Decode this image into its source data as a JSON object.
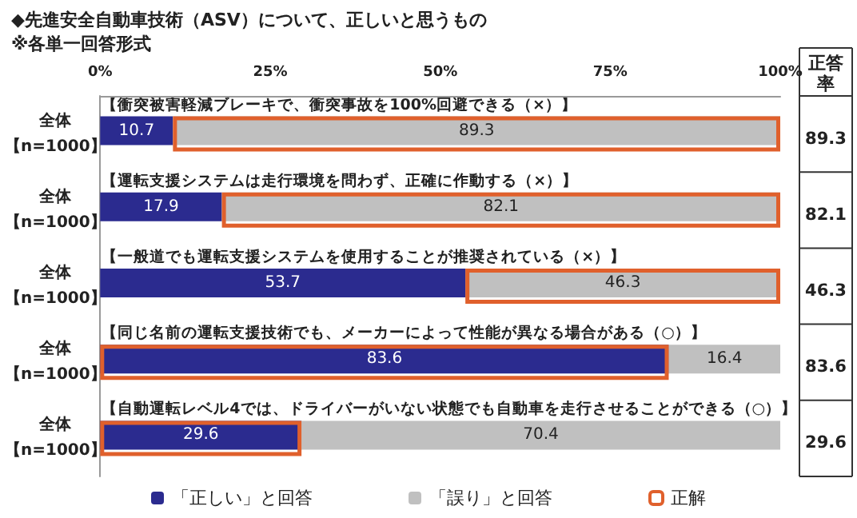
{
  "chart_data": {
    "type": "bar",
    "orientation": "horizontal",
    "title": "◆先進安全自動車技術（ASV）について、正しいと思うもの",
    "subtitle": "※各単一回答形式",
    "categories": [
      "全体【n=1000】",
      "全体【n=1000】",
      "全体【n=1000】",
      "全体【n=1000】",
      "全体【n=1000】"
    ],
    "series": [
      {
        "name": "「正しい」と回答",
        "color": "#2b2b8f",
        "base": [
          0,
          0,
          0,
          0,
          0
        ],
        "values": [
          10.7,
          17.9,
          53.7,
          83.6,
          29.6
        ]
      },
      {
        "name": "「誤り」と回答",
        "color": "#c0c0c0",
        "base": [
          10.7,
          17.9,
          53.7,
          83.6,
          29.6
        ],
        "values": [
          89.3,
          82.1,
          46.3,
          16.4,
          70.4
        ]
      },
      {
        "name": "正解",
        "color": "#e0602c",
        "base": [
          10.7,
          17.9,
          53.7,
          0,
          0
        ],
        "values": [
          89.3,
          82.1,
          46.3,
          83.6,
          29.6
        ]
      }
    ],
    "xlim": [
      0,
      100
    ],
    "xticks": [
      {
        "value": 0,
        "label": "0%"
      },
      {
        "value": 25,
        "label": "25%"
      },
      {
        "value": 50,
        "label": "50%"
      },
      {
        "value": 75,
        "label": "75%"
      },
      {
        "value": 100,
        "label": "100%"
      }
    ],
    "data_labels": true,
    "grid": false,
    "legend": "bottom",
    "annotations": [
      "【衝突被害軽減ブレーキで、衝突事故を100%回避できる（×）】",
      "【運転支援システムは走行環境を問わず、正確に作動する（×）】",
      "【一般道でも運転支援システムを使用することが推奨されている（×）】",
      "【同じ名前の運転支援技術でも、メーカーによって性能が異なる場合がある（○）】",
      "【自動運転レベル4では、ドライバーがいない状態でも自動車を走行させることができる（○）】",
      "正答率"
    ]
  }
}
